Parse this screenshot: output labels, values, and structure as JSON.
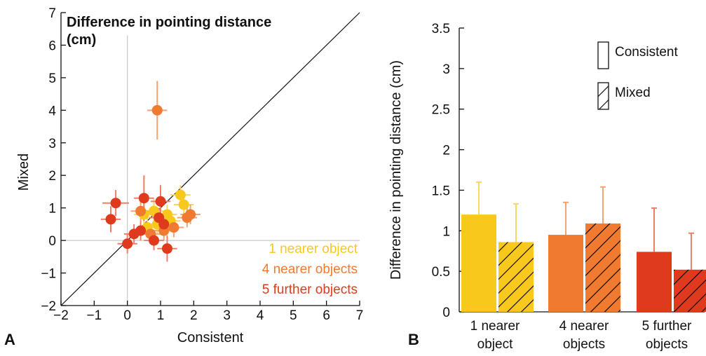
{
  "colors": {
    "yellow": "#F9C81C",
    "orange": "#F07A30",
    "red": "#E03A1E",
    "yellow_err": "#F6D766",
    "orange_err": "#F4A270",
    "red_err": "#EE7F66",
    "axis": "#111111",
    "refline": "#c8c8c8"
  },
  "chart_data": [
    {
      "type": "scatter",
      "panel": "A",
      "title_lines": [
        "Difference in pointing distance",
        "(cm)"
      ],
      "xlabel": "Consistent",
      "ylabel": "Mixed",
      "xlim": [
        -2,
        7
      ],
      "ylim": [
        -2,
        7
      ],
      "xticks": [
        -2,
        -1,
        0,
        1,
        2,
        3,
        4,
        5,
        6,
        7
      ],
      "yticks": [
        -2,
        -1,
        0,
        1,
        2,
        3,
        4,
        5,
        6,
        7
      ],
      "xtick_labels": [
        "−2",
        "−1",
        "0",
        "1",
        "2",
        "3",
        "4",
        "5",
        "6",
        "7"
      ],
      "ytick_labels": [
        "−2",
        "−1",
        "0",
        "1",
        "2",
        "3",
        "4",
        "5",
        "6",
        "7"
      ],
      "identity_line": true,
      "legend_position": "bottom-right",
      "series": [
        {
          "name": "1 nearer object",
          "color": "#F9C81C",
          "error_color": "#F6D766",
          "points": [
            {
              "x": 1.6,
              "y": 1.4,
              "xerr": 0.3,
              "yerr": 0.3
            },
            {
              "x": 1.7,
              "y": 1.1,
              "xerr": 0.3,
              "yerr": 0.3
            },
            {
              "x": 0.5,
              "y": 0.8,
              "xerr": 0.3,
              "yerr": 0.4
            },
            {
              "x": 0.8,
              "y": 0.9,
              "xerr": 0.3,
              "yerr": 0.4
            },
            {
              "x": 1.2,
              "y": 0.8,
              "xerr": 0.3,
              "yerr": 0.3
            },
            {
              "x": 0.9,
              "y": 0.5,
              "xerr": 0.3,
              "yerr": 0.3
            },
            {
              "x": 0.6,
              "y": 0.4,
              "xerr": 0.3,
              "yerr": 0.3
            },
            {
              "x": 1.3,
              "y": 0.6,
              "xerr": 0.3,
              "yerr": 0.3
            }
          ]
        },
        {
          "name": "4 nearer objects",
          "color": "#F07A30",
          "error_color": "#F4A270",
          "points": [
            {
              "x": 0.9,
              "y": 4.0,
              "xerr": 0.3,
              "yerr": 0.9
            },
            {
              "x": 1.9,
              "y": 0.8,
              "xerr": 0.3,
              "yerr": 0.3
            },
            {
              "x": 1.8,
              "y": 0.7,
              "xerr": 0.3,
              "yerr": 0.3
            },
            {
              "x": 0.4,
              "y": 0.9,
              "xerr": 0.3,
              "yerr": 0.3
            },
            {
              "x": 0.7,
              "y": 0.2,
              "xerr": 0.3,
              "yerr": 0.3
            },
            {
              "x": 1.1,
              "y": 0.3,
              "xerr": 0.3,
              "yerr": 0.3
            },
            {
              "x": 1.4,
              "y": 0.4,
              "xerr": 0.3,
              "yerr": 0.3
            }
          ]
        },
        {
          "name": "5 further objects",
          "color": "#E03A1E",
          "error_color": "#EE7F66",
          "points": [
            {
              "x": -0.35,
              "y": 1.15,
              "xerr": 0.4,
              "yerr": 0.4
            },
            {
              "x": -0.5,
              "y": 0.65,
              "xerr": 0.3,
              "yerr": 0.4
            },
            {
              "x": 0.5,
              "y": 1.3,
              "xerr": 0.3,
              "yerr": 0.7
            },
            {
              "x": 1.0,
              "y": 1.2,
              "xerr": 0.3,
              "yerr": 0.5
            },
            {
              "x": 0.2,
              "y": 0.2,
              "xerr": 0.3,
              "yerr": 0.3
            },
            {
              "x": 0.0,
              "y": -0.1,
              "xerr": 0.3,
              "yerr": 0.3
            },
            {
              "x": 0.4,
              "y": 0.3,
              "xerr": 0.3,
              "yerr": 0.3
            },
            {
              "x": 0.8,
              "y": 0.0,
              "xerr": 0.3,
              "yerr": 0.3
            },
            {
              "x": 1.2,
              "y": -0.25,
              "xerr": 0.3,
              "yerr": 0.4
            },
            {
              "x": 1.1,
              "y": 0.5,
              "xerr": 0.3,
              "yerr": 0.3
            },
            {
              "x": 0.95,
              "y": 0.7,
              "xerr": 0.3,
              "yerr": 0.3
            }
          ]
        }
      ]
    },
    {
      "type": "bar",
      "panel": "B",
      "ylabel": "Difference in pointing distance (cm)",
      "ylim": [
        0,
        3.5
      ],
      "yticks": [
        0,
        0.5,
        1,
        1.5,
        2,
        2.5,
        3,
        3.5
      ],
      "ytick_labels": [
        "0",
        "0.5",
        "1",
        "1.5",
        "2",
        "2.5",
        "3",
        "3.5"
      ],
      "categories": [
        {
          "lines": [
            "1 nearer",
            "object"
          ],
          "color": "#F9C81C",
          "error_color": "#F6D766"
        },
        {
          "lines": [
            "4 nearer",
            "objects"
          ],
          "color": "#F07A30",
          "error_color": "#F4A270"
        },
        {
          "lines": [
            "5 further",
            "objects"
          ],
          "color": "#E03A1E",
          "error_color": "#EE7F66"
        }
      ],
      "series": [
        {
          "name": "Consistent",
          "pattern": "solid",
          "values": [
            1.2,
            0.95,
            0.74
          ],
          "errors": [
            0.4,
            0.4,
            0.54
          ]
        },
        {
          "name": "Mixed",
          "pattern": "hatched",
          "values": [
            0.86,
            1.09,
            0.52
          ],
          "errors": [
            0.47,
            0.45,
            0.45
          ]
        }
      ],
      "legend_position": "top-right"
    }
  ],
  "panel_labels": {
    "a": "A",
    "b": "B"
  }
}
